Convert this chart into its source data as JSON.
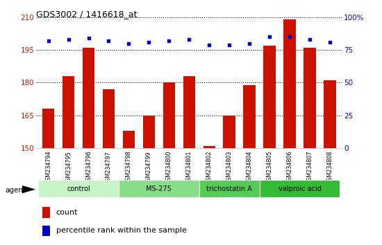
{
  "title": "GDS3002 / 1416618_at",
  "samples": [
    "GSM234794",
    "GSM234795",
    "GSM234796",
    "GSM234797",
    "GSM234798",
    "GSM234799",
    "GSM234800",
    "GSM234801",
    "GSM234802",
    "GSM234803",
    "GSM234804",
    "GSM234805",
    "GSM234806",
    "GSM234807",
    "GSM234808"
  ],
  "counts": [
    168,
    183,
    196,
    177,
    158,
    165,
    180,
    183,
    151,
    165,
    179,
    197,
    209,
    196,
    181
  ],
  "percentile_ranks": [
    82,
    83,
    84,
    82,
    80,
    81,
    82,
    83,
    79,
    79,
    80,
    85,
    85,
    83,
    81
  ],
  "ylim_left": [
    150,
    210
  ],
  "ylim_right": [
    0,
    100
  ],
  "yticks_left": [
    150,
    165,
    180,
    195,
    210
  ],
  "yticks_right": [
    0,
    25,
    50,
    75,
    100
  ],
  "ytick_labels_right": [
    "0",
    "25",
    "50",
    "75",
    "100%"
  ],
  "groups": [
    {
      "label": "control",
      "start": 0,
      "end": 4,
      "color": "#c8f5c8"
    },
    {
      "label": "MS-275",
      "start": 4,
      "end": 8,
      "color": "#88dd88"
    },
    {
      "label": "trichostatin A",
      "start": 8,
      "end": 11,
      "color": "#55cc55"
    },
    {
      "label": "valproic acid",
      "start": 11,
      "end": 15,
      "color": "#33bb33"
    }
  ],
  "bar_color": "#cc1100",
  "dot_color": "#0000cc",
  "agent_label": "agent",
  "legend_count_label": "count",
  "legend_percentile_label": "percentile rank within the sample",
  "bar_width": 0.6,
  "tick_label_color_left": "#cc1100",
  "tick_label_color_right": "#0000cc",
  "background_color": "#ffffff"
}
